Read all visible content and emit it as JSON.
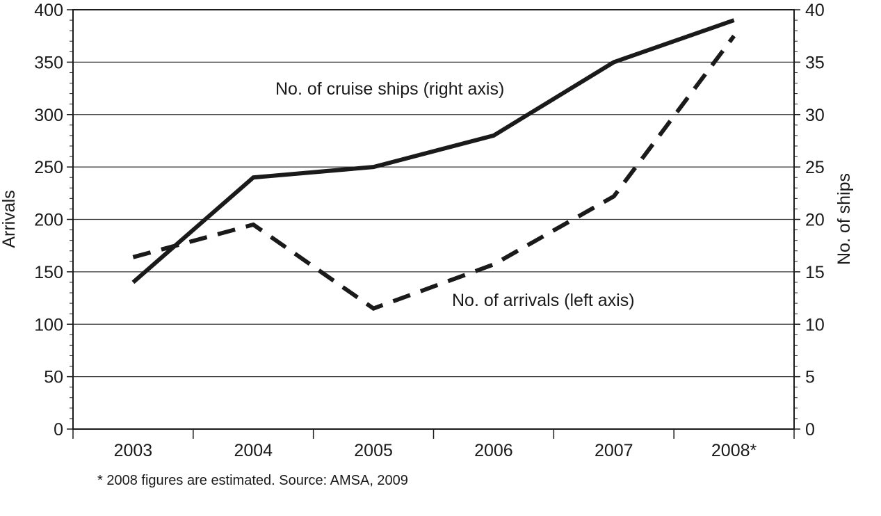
{
  "chart_data": {
    "type": "line",
    "categories": [
      "2003",
      "2004",
      "2005",
      "2006",
      "2007",
      "2008*"
    ],
    "series": [
      {
        "axis": "right",
        "style": "solid",
        "color": "#1a1a1a",
        "values": [
          14,
          24,
          25,
          28,
          35,
          39
        ]
      },
      {
        "axis": "left",
        "style": "dashed",
        "color": "#1a1a1a",
        "values": [
          164,
          195,
          115,
          157,
          222,
          375
        ]
      }
    ],
    "left_axis": {
      "label": "Arrivals",
      "ylim": [
        0,
        400
      ],
      "ticks": [
        "0",
        "50",
        "100",
        "150",
        "200",
        "250",
        "300",
        "350",
        "400"
      ]
    },
    "right_axis": {
      "label": "No. of ships",
      "ylim": [
        0,
        40
      ],
      "ticks": [
        "0",
        "5",
        "10",
        "15",
        "20",
        "25",
        "30",
        "35",
        "40"
      ]
    },
    "annotations": [
      {
        "text": "No. of cruise ships (right axis)"
      },
      {
        "text": "No. of arrivals (left axis)"
      }
    ],
    "footnote": "* 2008 figures are estimated. Source: AMSA, 2009",
    "grid": true,
    "legend": "none"
  }
}
